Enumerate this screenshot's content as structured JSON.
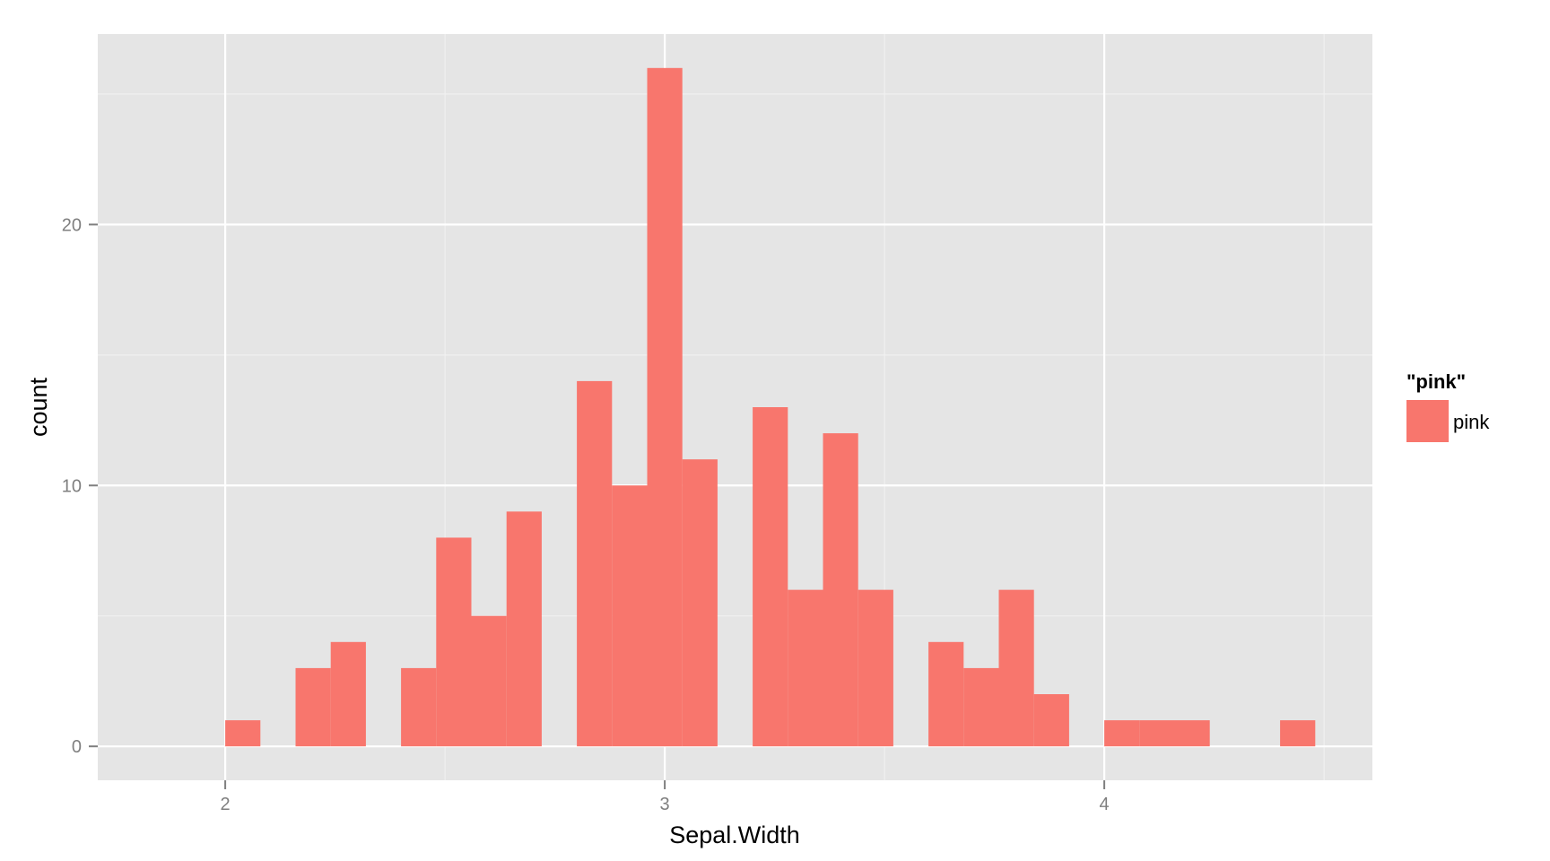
{
  "chart_data": {
    "type": "bar",
    "subtype": "histogram",
    "xlabel": "Sepal.Width",
    "ylabel": "count",
    "xlim": [
      1.71,
      4.61
    ],
    "ylim": [
      -1.3,
      27.3
    ],
    "x_ticks": [
      2,
      3,
      4
    ],
    "x_minor_ticks": [
      2.5,
      3.5,
      4.5
    ],
    "y_ticks": [
      0,
      10,
      20
    ],
    "y_minor_ticks": [
      5,
      15,
      25
    ],
    "bin_width": 0.08,
    "bins": [
      {
        "x0": 2.0,
        "x1": 2.08,
        "count": 1
      },
      {
        "x0": 2.16,
        "x1": 2.24,
        "count": 3
      },
      {
        "x0": 2.24,
        "x1": 2.32,
        "count": 4
      },
      {
        "x0": 2.4,
        "x1": 2.48,
        "count": 3
      },
      {
        "x0": 2.48,
        "x1": 2.56,
        "count": 8
      },
      {
        "x0": 2.56,
        "x1": 2.64,
        "count": 5
      },
      {
        "x0": 2.64,
        "x1": 2.72,
        "count": 9
      },
      {
        "x0": 2.8,
        "x1": 2.88,
        "count": 14
      },
      {
        "x0": 2.88,
        "x1": 2.96,
        "count": 10
      },
      {
        "x0": 2.96,
        "x1": 3.04,
        "count": 26
      },
      {
        "x0": 3.04,
        "x1": 3.12,
        "count": 11
      },
      {
        "x0": 3.2,
        "x1": 3.28,
        "count": 13
      },
      {
        "x0": 3.28,
        "x1": 3.36,
        "count": 6
      },
      {
        "x0": 3.36,
        "x1": 3.44,
        "count": 12
      },
      {
        "x0": 3.44,
        "x1": 3.52,
        "count": 6
      },
      {
        "x0": 3.6,
        "x1": 3.68,
        "count": 4
      },
      {
        "x0": 3.68,
        "x1": 3.76,
        "count": 3
      },
      {
        "x0": 3.76,
        "x1": 3.84,
        "count": 6
      },
      {
        "x0": 3.84,
        "x1": 3.92,
        "count": 2
      },
      {
        "x0": 4.0,
        "x1": 4.08,
        "count": 1
      },
      {
        "x0": 4.08,
        "x1": 4.16,
        "count": 1
      },
      {
        "x0": 4.16,
        "x1": 4.24,
        "count": 1
      },
      {
        "x0": 4.4,
        "x1": 4.48,
        "count": 1
      }
    ],
    "grid": true,
    "panel_color": "#e5e5e5",
    "grid_color": "#ffffff",
    "bar_color": "#f8766d",
    "legend": {
      "position": "right",
      "title": "\"pink\"",
      "entries": [
        {
          "label": "pink",
          "color": "#f8766d"
        }
      ]
    }
  }
}
